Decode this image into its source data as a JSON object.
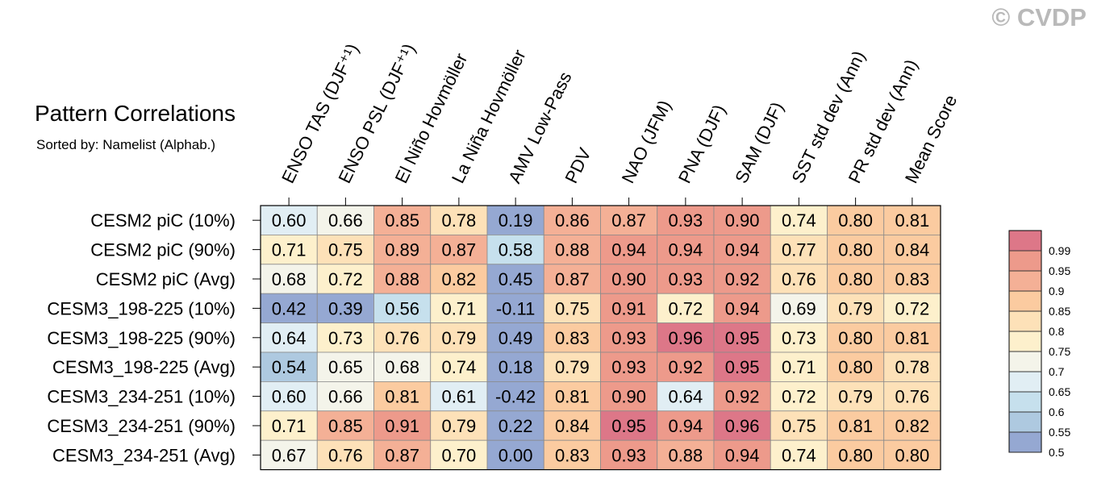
{
  "watermark": "© CVDP",
  "chart_data": {
    "type": "heatmap",
    "title": "Pattern Correlations",
    "subtitle": "Sorted by: Namelist (Alphab.)",
    "columns": [
      "ENSO TAS (DJF⁺¹)",
      "ENSO PSL (DJF⁺¹)",
      "El Niño Hovmöller",
      "La Niña Hovmöller",
      "AMV Low-Pass",
      "PDV",
      "NAO (JFM)",
      "PNA (DJF)",
      "SAM (DJF)",
      "SST std dev (Ann)",
      "PR std dev (Ann)",
      "Mean Score"
    ],
    "rows": [
      "CESM2 piC (10%)",
      "CESM2 piC (90%)",
      "CESM2 piC (Avg)",
      "CESM3_198-225 (10%)",
      "CESM3_198-225 (90%)",
      "CESM3_198-225 (Avg)",
      "CESM3_234-251 (10%)",
      "CESM3_234-251 (90%)",
      "CESM3_234-251 (Avg)"
    ],
    "values": [
      [
        "0.60",
        "0.66",
        "0.85",
        "0.78",
        "0.19",
        "0.86",
        "0.87",
        "0.93",
        "0.90",
        "0.74",
        "0.80",
        "0.81"
      ],
      [
        "0.71",
        "0.75",
        "0.89",
        "0.87",
        "0.58",
        "0.88",
        "0.94",
        "0.94",
        "0.94",
        "0.77",
        "0.80",
        "0.84"
      ],
      [
        "0.68",
        "0.72",
        "0.88",
        "0.82",
        "0.45",
        "0.87",
        "0.90",
        "0.93",
        "0.92",
        "0.76",
        "0.80",
        "0.83"
      ],
      [
        "0.42",
        "0.39",
        "0.56",
        "0.71",
        "-0.11",
        "0.75",
        "0.91",
        "0.72",
        "0.94",
        "0.69",
        "0.79",
        "0.72"
      ],
      [
        "0.64",
        "0.73",
        "0.76",
        "0.79",
        "0.49",
        "0.83",
        "0.93",
        "0.96",
        "0.95",
        "0.73",
        "0.80",
        "0.81"
      ],
      [
        "0.54",
        "0.65",
        "0.68",
        "0.74",
        "0.18",
        "0.79",
        "0.93",
        "0.92",
        "0.95",
        "0.71",
        "0.80",
        "0.78"
      ],
      [
        "0.60",
        "0.66",
        "0.81",
        "0.61",
        "-0.42",
        "0.81",
        "0.90",
        "0.64",
        "0.92",
        "0.72",
        "0.79",
        "0.76"
      ],
      [
        "0.71",
        "0.85",
        "0.91",
        "0.79",
        "0.22",
        "0.84",
        "0.95",
        "0.94",
        "0.96",
        "0.75",
        "0.81",
        "0.82"
      ],
      [
        "0.67",
        "0.76",
        "0.87",
        "0.70",
        "0.00",
        "0.83",
        "0.93",
        "0.88",
        "0.94",
        "0.74",
        "0.80",
        "0.80"
      ]
    ],
    "colorbar": {
      "labels": [
        "0.99",
        "0.95",
        "0.9",
        "0.85",
        "0.8",
        "0.75",
        "0.7",
        "0.65",
        "0.6",
        "0.55",
        "0.5"
      ],
      "levels": [
        0.5,
        0.55,
        0.6,
        0.65,
        0.7,
        0.75,
        0.8,
        0.85,
        0.9,
        0.95,
        0.99
      ],
      "colors": [
        "#95a8d2",
        "#aec9e0",
        "#c6e0ed",
        "#e1eef4",
        "#f4f4ea",
        "#fdf0cc",
        "#fde1b8",
        "#fbcba0",
        "#f4b096",
        "#ed9a8b",
        "#dd7788"
      ]
    }
  }
}
